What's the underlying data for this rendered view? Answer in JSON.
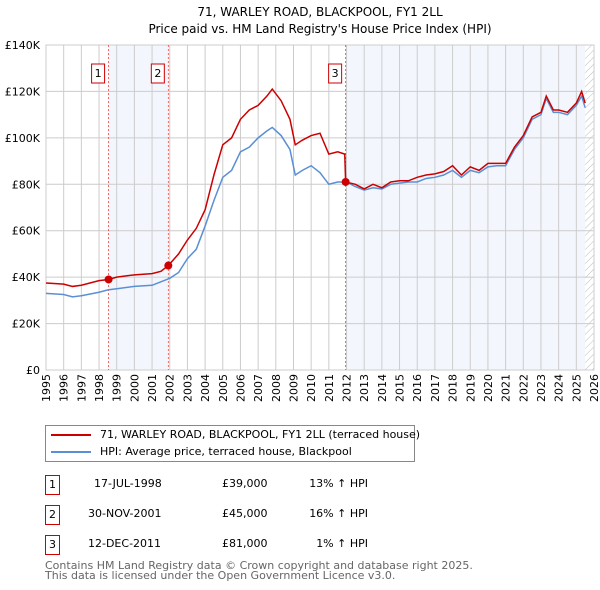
{
  "chart_data": {
    "type": "line",
    "title": "71, WARLEY ROAD, BLACKPOOL, FY1 2LL",
    "subtitle": "Price paid vs. HM Land Registry's House Price Index (HPI)",
    "xlim": [
      1995,
      2026
    ],
    "ylim": [
      0,
      140000
    ],
    "x_ticks": [
      "1995",
      "1996",
      "1997",
      "1998",
      "1999",
      "2000",
      "2001",
      "2002",
      "2003",
      "2004",
      "2005",
      "2006",
      "2007",
      "2008",
      "2009",
      "2010",
      "2011",
      "2012",
      "2013",
      "2014",
      "2015",
      "2016",
      "2017",
      "2018",
      "2019",
      "2020",
      "2021",
      "2022",
      "2023",
      "2024",
      "2025",
      "2026"
    ],
    "y_ticks": [
      {
        "v": 0,
        "label": "£0"
      },
      {
        "v": 20000,
        "label": "£20K"
      },
      {
        "v": 40000,
        "label": "£40K"
      },
      {
        "v": 60000,
        "label": "£60K"
      },
      {
        "v": 80000,
        "label": "£80K"
      },
      {
        "v": 100000,
        "label": "£100K"
      },
      {
        "v": 120000,
        "label": "£120K"
      },
      {
        "v": 140000,
        "label": "£140K"
      }
    ],
    "grid": true,
    "series": [
      {
        "name": "71, WARLEY ROAD, BLACKPOOL, FY1 2LL (terraced house)",
        "color": "#cc0000",
        "points": [
          [
            1995,
            37500
          ],
          [
            1996,
            37000
          ],
          [
            1996.5,
            36000
          ],
          [
            1997,
            36500
          ],
          [
            1998,
            38500
          ],
          [
            1998.54,
            39000
          ],
          [
            1999,
            40000
          ],
          [
            2000,
            41000
          ],
          [
            2001,
            41500
          ],
          [
            2001.5,
            42500
          ],
          [
            2001.92,
            45000
          ],
          [
            2002.5,
            50000
          ],
          [
            2003,
            56000
          ],
          [
            2003.5,
            61000
          ],
          [
            2004,
            69000
          ],
          [
            2004.5,
            84000
          ],
          [
            2005,
            97000
          ],
          [
            2005.5,
            100000
          ],
          [
            2006,
            108000
          ],
          [
            2006.5,
            112000
          ],
          [
            2007,
            114000
          ],
          [
            2007.5,
            118000
          ],
          [
            2007.8,
            121000
          ],
          [
            2008.3,
            116000
          ],
          [
            2008.8,
            108000
          ],
          [
            2009.1,
            97000
          ],
          [
            2009.5,
            99000
          ],
          [
            2010,
            101000
          ],
          [
            2010.5,
            102000
          ],
          [
            2011,
            93000
          ],
          [
            2011.5,
            94000
          ],
          [
            2011.9,
            93000
          ],
          [
            2011.95,
            81000
          ],
          [
            2012.5,
            80000
          ],
          [
            2013,
            78000
          ],
          [
            2013.5,
            80000
          ],
          [
            2014,
            78500
          ],
          [
            2014.5,
            81000
          ],
          [
            2015,
            81500
          ],
          [
            2015.5,
            81500
          ],
          [
            2016,
            83000
          ],
          [
            2016.5,
            84000
          ],
          [
            2017,
            84500
          ],
          [
            2017.5,
            85500
          ],
          [
            2018,
            88000
          ],
          [
            2018.5,
            84000
          ],
          [
            2019,
            87500
          ],
          [
            2019.5,
            86000
          ],
          [
            2020,
            89000
          ],
          [
            2020.5,
            89000
          ],
          [
            2021,
            89000
          ],
          [
            2021.5,
            96000
          ],
          [
            2022,
            101000
          ],
          [
            2022.5,
            109000
          ],
          [
            2023,
            111000
          ],
          [
            2023.3,
            118000
          ],
          [
            2023.7,
            112000
          ],
          [
            2024,
            112000
          ],
          [
            2024.5,
            111000
          ],
          [
            2025,
            115000
          ],
          [
            2025.3,
            120000
          ],
          [
            2025.5,
            115000
          ]
        ]
      },
      {
        "name": "HPI: Average price, terraced house, Blackpool",
        "color": "#5b8fd4",
        "points": [
          [
            1995,
            33000
          ],
          [
            1996,
            32500
          ],
          [
            1996.5,
            31500
          ],
          [
            1997,
            32000
          ],
          [
            1998,
            33500
          ],
          [
            1998.5,
            34500
          ],
          [
            1999,
            35000
          ],
          [
            2000,
            36000
          ],
          [
            2001,
            36500
          ],
          [
            2001.5,
            38000
          ],
          [
            2002,
            39500
          ],
          [
            2002.5,
            42000
          ],
          [
            2003,
            48000
          ],
          [
            2003.5,
            52000
          ],
          [
            2004,
            62000
          ],
          [
            2004.5,
            73000
          ],
          [
            2005,
            83000
          ],
          [
            2005.5,
            86000
          ],
          [
            2006,
            94000
          ],
          [
            2006.5,
            96000
          ],
          [
            2007,
            100000
          ],
          [
            2007.5,
            103000
          ],
          [
            2007.8,
            104500
          ],
          [
            2008.3,
            101000
          ],
          [
            2008.8,
            95000
          ],
          [
            2009.1,
            84000
          ],
          [
            2009.5,
            86000
          ],
          [
            2010,
            88000
          ],
          [
            2010.5,
            85000
          ],
          [
            2011,
            80000
          ],
          [
            2011.5,
            81000
          ],
          [
            2012,
            81000
          ],
          [
            2012.5,
            79000
          ],
          [
            2013,
            77500
          ],
          [
            2013.5,
            78500
          ],
          [
            2014,
            78000
          ],
          [
            2014.5,
            80000
          ],
          [
            2015,
            80500
          ],
          [
            2015.5,
            81000
          ],
          [
            2016,
            81000
          ],
          [
            2016.5,
            82500
          ],
          [
            2017,
            83000
          ],
          [
            2017.5,
            84000
          ],
          [
            2018,
            86000
          ],
          [
            2018.5,
            83000
          ],
          [
            2019,
            86000
          ],
          [
            2019.5,
            85000
          ],
          [
            2020,
            87500
          ],
          [
            2020.5,
            88000
          ],
          [
            2021,
            88000
          ],
          [
            2021.5,
            95000
          ],
          [
            2022,
            100000
          ],
          [
            2022.5,
            108000
          ],
          [
            2023,
            110000
          ],
          [
            2023.3,
            117000
          ],
          [
            2023.7,
            111000
          ],
          [
            2024,
            111000
          ],
          [
            2024.5,
            110000
          ],
          [
            2025,
            114000
          ],
          [
            2025.3,
            118000
          ],
          [
            2025.5,
            113000
          ]
        ]
      }
    ],
    "sales": [
      {
        "n": "1",
        "x": 1998.54,
        "y": 39000
      },
      {
        "n": "2",
        "x": 2001.92,
        "y": 45000
      },
      {
        "n": "3",
        "x": 2011.95,
        "y": 81000
      }
    ],
    "shaded": [
      [
        1998.54,
        2001.92
      ],
      [
        2011.95,
        2025.5
      ]
    ],
    "hatched_from": 2025.5,
    "legend": "below"
  },
  "legend": {
    "property": "71, WARLEY ROAD, BLACKPOOL, FY1 2LL (terraced house)",
    "hpi": "HPI: Average price, terraced house, Blackpool"
  },
  "transactions": [
    {
      "n": "1",
      "date": "17-JUL-1998",
      "price": "£39,000",
      "hpi": "13% ↑ HPI"
    },
    {
      "n": "2",
      "date": "30-NOV-2001",
      "price": "£45,000",
      "hpi": "16% ↑ HPI"
    },
    {
      "n": "3",
      "date": "12-DEC-2011",
      "price": "£81,000",
      "hpi": "1% ↑ HPI"
    }
  ],
  "footer": {
    "line1": "Contains HM Land Registry data © Crown copyright and database right 2025.",
    "line2": "This data is licensed under the Open Government Licence v3.0."
  }
}
